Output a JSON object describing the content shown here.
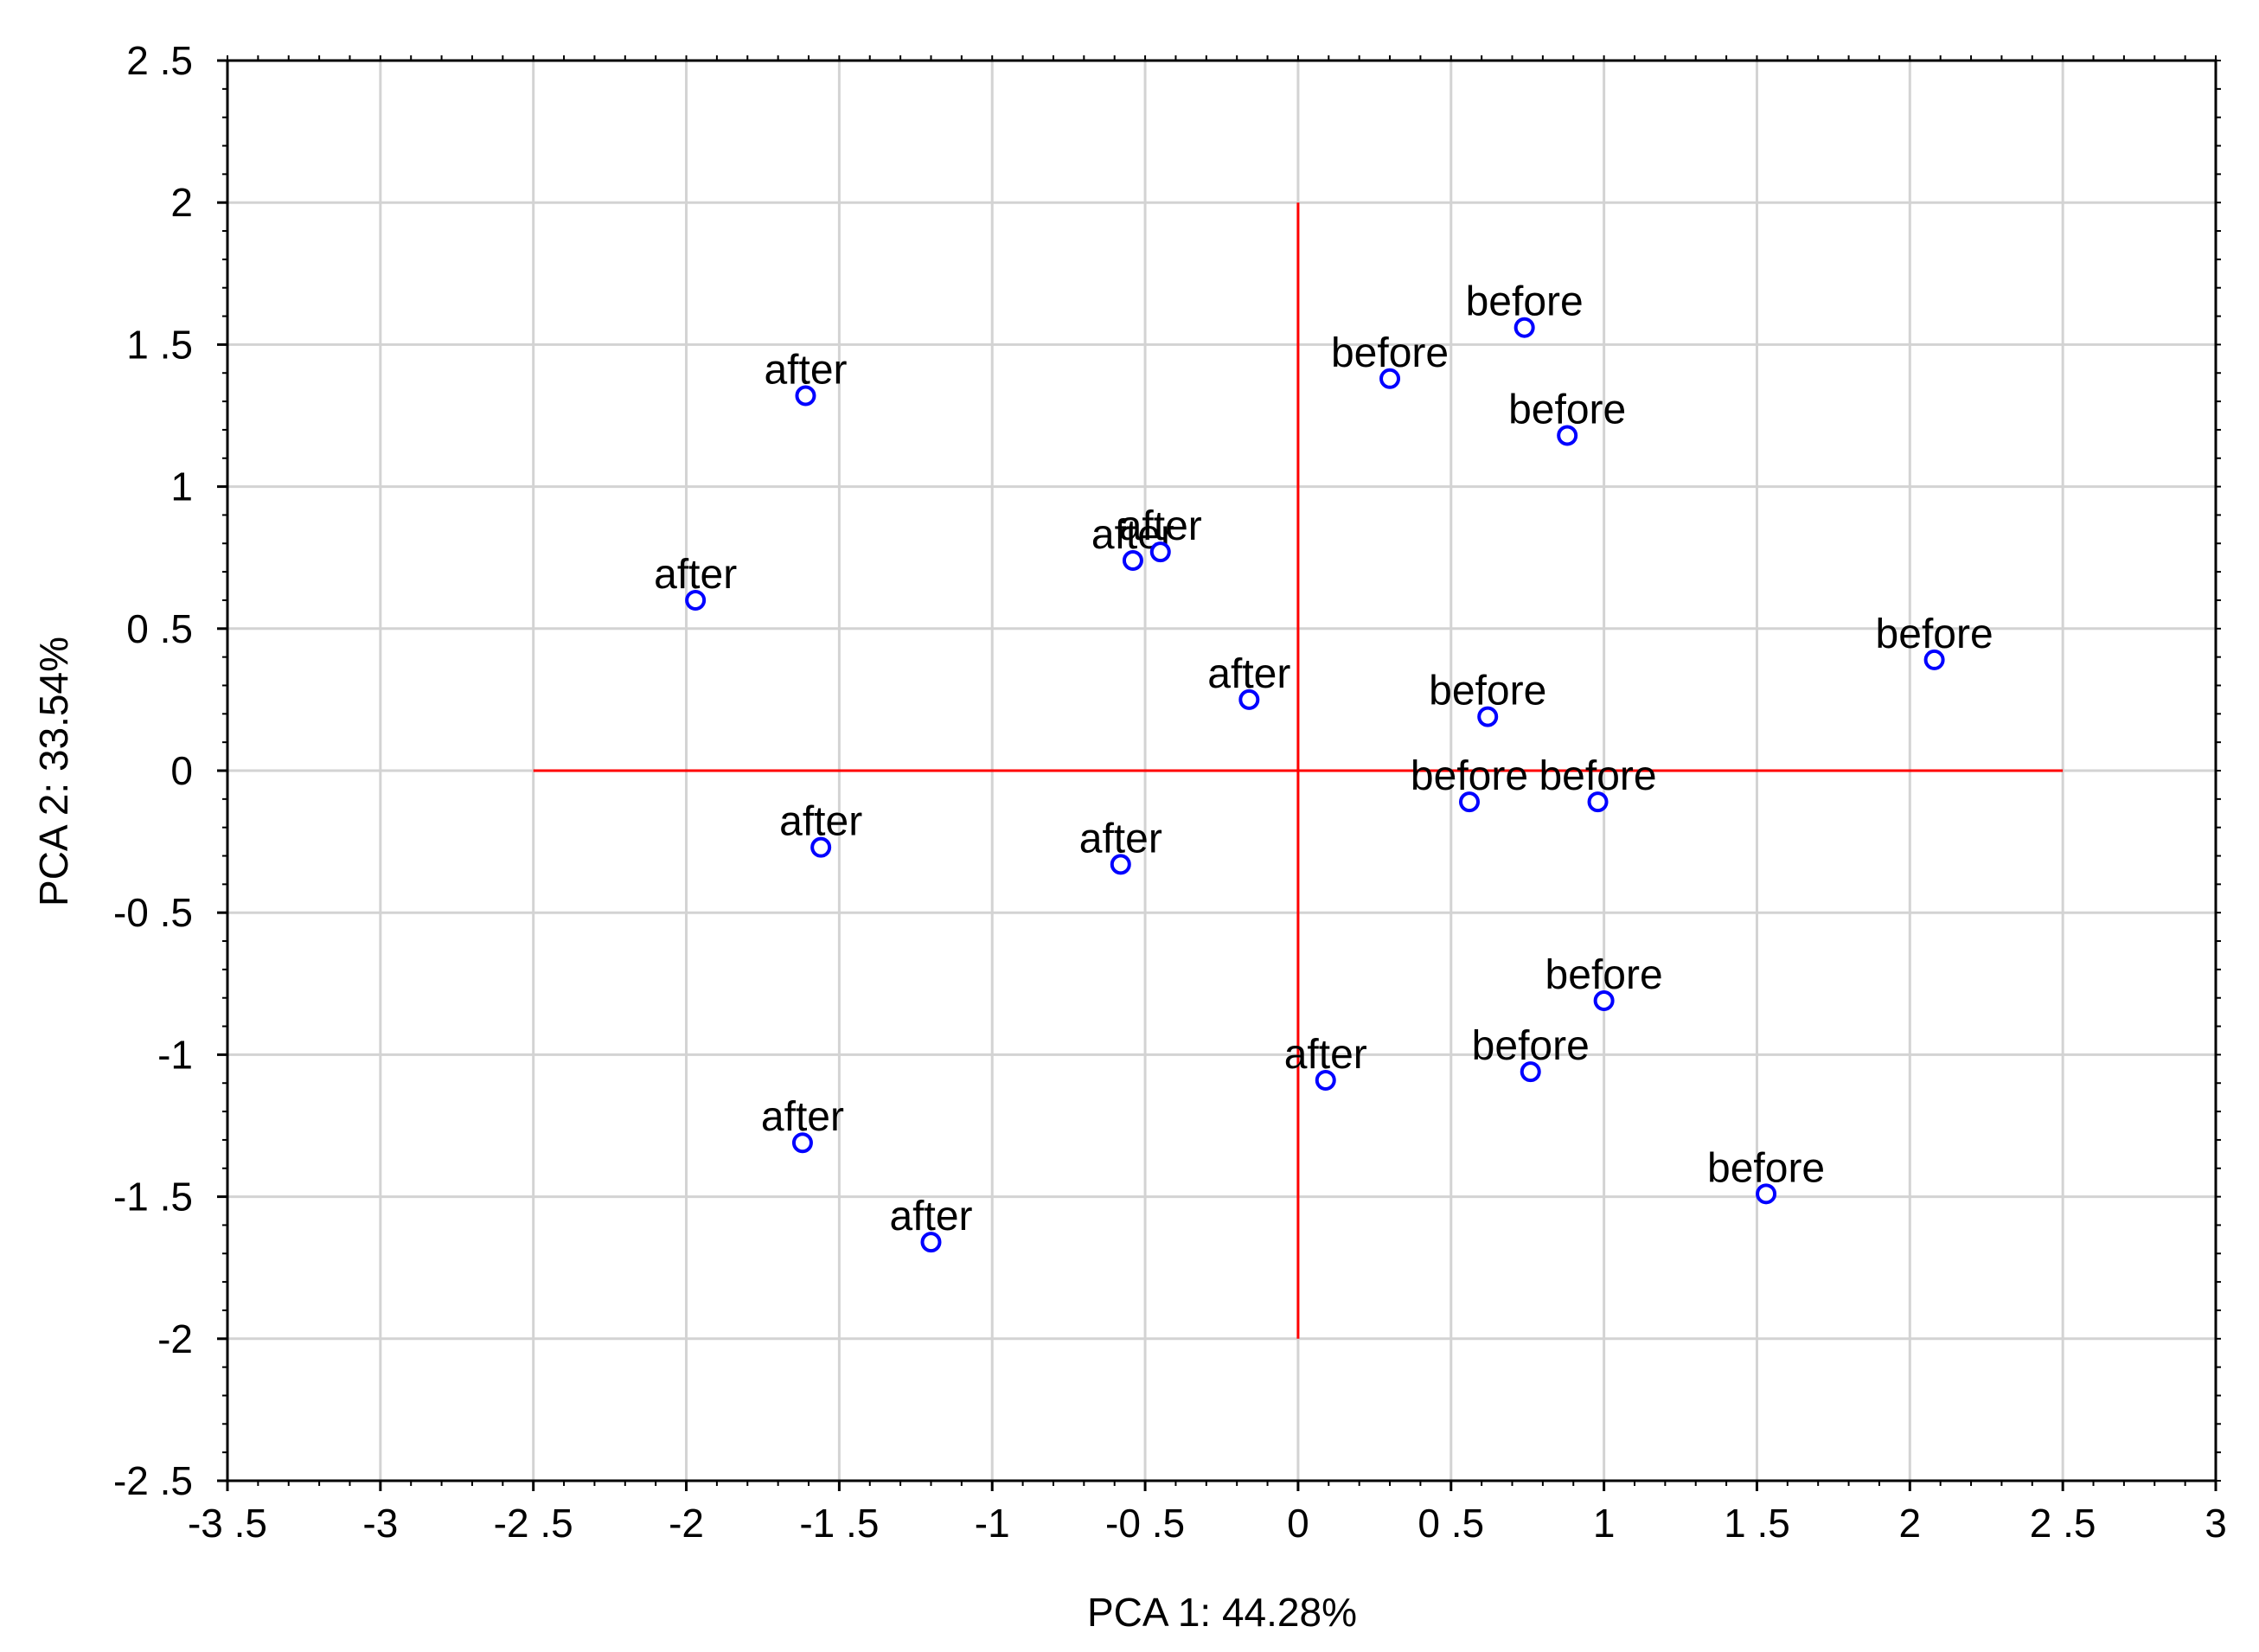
{
  "chart_data": {
    "type": "scatter",
    "xlabel": "PCA 1: 44.28%",
    "ylabel": "PCA 2: 33.54%",
    "xlim": [
      -3.5,
      3
    ],
    "ylim": [
      -2.5,
      2.5
    ],
    "x_ticks": [
      -3.5,
      -3,
      -2.5,
      -2,
      -1.5,
      -1,
      -0.5,
      0,
      0.5,
      1,
      1.5,
      2,
      2.5,
      3
    ],
    "x_tick_labels": [
      "-3 .5",
      "-3",
      "-2 .5",
      "-2",
      "-1 .5",
      "-1",
      "-0 .5",
      "0",
      "0 .5",
      "1",
      "1 .5",
      "2",
      "2 .5",
      "3"
    ],
    "y_ticks": [
      2.5,
      2,
      1.5,
      1,
      0.5,
      0,
      -0.5,
      -1,
      -1.5,
      -2,
      -2.5
    ],
    "y_tick_labels": [
      "2 .5",
      "2",
      "1 .5",
      "1",
      "0 .5",
      "0",
      "-0 .5",
      "-1",
      "-1 .5",
      "-2",
      "-2 .5"
    ],
    "grid": true,
    "reference_lines": {
      "horizontal": {
        "y": 0,
        "x_from": -2.5,
        "x_to": 2.5
      },
      "vertical": {
        "x": 0,
        "y_from": -2,
        "y_to": 2
      },
      "color": "#ff0000"
    },
    "marker_color": "#0000ff",
    "grid_color": "#d3d3d3",
    "points": [
      {
        "label": "after",
        "x": -1.61,
        "y": 1.32
      },
      {
        "label": "after",
        "x": -1.97,
        "y": 0.6
      },
      {
        "label": "after",
        "x": -0.54,
        "y": 0.74
      },
      {
        "label": "after",
        "x": -0.45,
        "y": 0.77
      },
      {
        "label": "after",
        "x": -0.16,
        "y": 0.25
      },
      {
        "label": "after",
        "x": -1.56,
        "y": -0.27
      },
      {
        "label": "after",
        "x": -0.58,
        "y": -0.33
      },
      {
        "label": "after",
        "x": 0.09,
        "y": -1.09
      },
      {
        "label": "after",
        "x": -1.62,
        "y": -1.31
      },
      {
        "label": "after",
        "x": -1.2,
        "y": -1.66
      },
      {
        "label": "before",
        "x": 0.74,
        "y": 1.56
      },
      {
        "label": "before",
        "x": 0.3,
        "y": 1.38
      },
      {
        "label": "before",
        "x": 0.88,
        "y": 1.18
      },
      {
        "label": "before",
        "x": 2.08,
        "y": 0.39
      },
      {
        "label": "before",
        "x": 0.62,
        "y": 0.19
      },
      {
        "label": "before",
        "x": 0.56,
        "y": -0.11
      },
      {
        "label": "before",
        "x": 0.98,
        "y": -0.11
      },
      {
        "label": "before",
        "x": 1.0,
        "y": -0.81
      },
      {
        "label": "before",
        "x": 0.76,
        "y": -1.06
      },
      {
        "label": "before",
        "x": 1.53,
        "y": -1.49
      }
    ]
  }
}
